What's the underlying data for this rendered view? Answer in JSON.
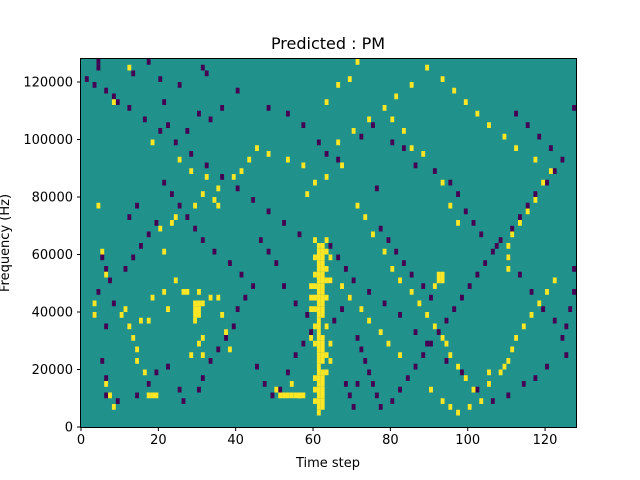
{
  "chart_data": {
    "type": "heatmap",
    "title": "Predicted : PM",
    "xlabel": "Time step",
    "ylabel": "Frequency (Hz)",
    "xlim": [
      0,
      128
    ],
    "ylim": [
      0,
      128000
    ],
    "xticks": [
      0,
      20,
      40,
      60,
      80,
      100,
      120
    ],
    "xtick_labels": [
      "0",
      "20",
      "40",
      "60",
      "80",
      "100",
      "120"
    ],
    "yticks": [
      0,
      20000,
      40000,
      60000,
      80000,
      100000,
      120000
    ],
    "ytick_labels": [
      "0",
      "20000",
      "40000",
      "60000",
      "80000",
      "100000",
      "120000"
    ],
    "colormap": "viridis",
    "colors": {
      "low": "#440154",
      "mid": "#21918c",
      "high": "#fde725"
    },
    "background_value": "mid",
    "bin_width_time": 1,
    "bin_height_hz": 2000,
    "low_cells": [
      [
        4,
        126000
      ],
      [
        4,
        124000
      ],
      [
        1,
        120000
      ],
      [
        3,
        118000
      ],
      [
        9,
        112000
      ],
      [
        13,
        122000
      ],
      [
        17,
        126000
      ],
      [
        20,
        120000
      ],
      [
        21,
        112000
      ],
      [
        25,
        118000
      ],
      [
        31,
        124000
      ],
      [
        32,
        122000
      ],
      [
        22,
        104000
      ],
      [
        27,
        102000
      ],
      [
        30,
        108000
      ],
      [
        33,
        106000
      ],
      [
        36,
        110000
      ],
      [
        40,
        116000
      ],
      [
        48,
        110000
      ],
      [
        53,
        108000
      ],
      [
        57,
        104000
      ],
      [
        61,
        98000
      ],
      [
        63,
        94000
      ],
      [
        66,
        92000
      ],
      [
        72,
        100000
      ],
      [
        75,
        104000
      ],
      [
        76,
        82000
      ],
      [
        80,
        98000
      ],
      [
        83,
        96000
      ],
      [
        86,
        90000
      ],
      [
        91,
        88000
      ],
      [
        95,
        84000
      ],
      [
        97,
        80000
      ],
      [
        99,
        74000
      ],
      [
        101,
        70000
      ],
      [
        103,
        66000
      ],
      [
        107,
        62000
      ],
      [
        110,
        58000
      ],
      [
        113,
        52000
      ],
      [
        116,
        46000
      ],
      [
        119,
        40000
      ],
      [
        122,
        36000
      ],
      [
        124,
        30000
      ],
      [
        125,
        24000
      ],
      [
        120,
        20000
      ],
      [
        117,
        16000
      ],
      [
        114,
        14000
      ],
      [
        110,
        10000
      ],
      [
        106,
        8000
      ],
      [
        102,
        12000
      ],
      [
        98,
        18000
      ],
      [
        94,
        22000
      ],
      [
        90,
        28000
      ],
      [
        86,
        32000
      ],
      [
        82,
        38000
      ],
      [
        78,
        42000
      ],
      [
        74,
        46000
      ],
      [
        70,
        50000
      ],
      [
        68,
        54000
      ],
      [
        66,
        58000
      ],
      [
        64,
        62000
      ],
      [
        56,
        66000
      ],
      [
        52,
        70000
      ],
      [
        48,
        74000
      ],
      [
        44,
        78000
      ],
      [
        40,
        82000
      ],
      [
        36,
        86000
      ],
      [
        32,
        90000
      ],
      [
        28,
        94000
      ],
      [
        24,
        98000
      ],
      [
        20,
        102000
      ],
      [
        16,
        106000
      ],
      [
        12,
        110000
      ],
      [
        8,
        114000
      ],
      [
        6,
        116000
      ],
      [
        5,
        58000
      ],
      [
        6,
        54000
      ],
      [
        7,
        50000
      ],
      [
        4,
        46000
      ],
      [
        8,
        42000
      ],
      [
        3,
        38000
      ],
      [
        6,
        34000
      ],
      [
        5,
        22000
      ],
      [
        6,
        16000
      ],
      [
        6,
        10000
      ],
      [
        9,
        8000
      ],
      [
        14,
        10000
      ],
      [
        17,
        14000
      ],
      [
        19,
        18000
      ],
      [
        22,
        20000
      ],
      [
        25,
        12000
      ],
      [
        26,
        8000
      ],
      [
        30,
        12000
      ],
      [
        31,
        16000
      ],
      [
        33,
        22000
      ],
      [
        35,
        26000
      ],
      [
        37,
        30000
      ],
      [
        39,
        34000
      ],
      [
        40,
        40000
      ],
      [
        42,
        44000
      ],
      [
        44,
        48000
      ],
      [
        41,
        52000
      ],
      [
        38,
        56000
      ],
      [
        34,
        60000
      ],
      [
        31,
        64000
      ],
      [
        29,
        68000
      ],
      [
        27,
        72000
      ],
      [
        25,
        76000
      ],
      [
        23,
        80000
      ],
      [
        21,
        84000
      ],
      [
        19,
        70000
      ],
      [
        17,
        66000
      ],
      [
        15,
        62000
      ],
      [
        13,
        58000
      ],
      [
        11,
        54000
      ],
      [
        12,
        72000
      ],
      [
        14,
        76000
      ],
      [
        45,
        20000
      ],
      [
        47,
        14000
      ],
      [
        49,
        10000
      ],
      [
        51,
        12000
      ],
      [
        53,
        18000
      ],
      [
        55,
        24000
      ],
      [
        57,
        28000
      ],
      [
        59,
        32000
      ],
      [
        65,
        36000
      ],
      [
        67,
        40000
      ],
      [
        69,
        44000
      ],
      [
        71,
        30000
      ],
      [
        72,
        26000
      ],
      [
        73,
        22000
      ],
      [
        74,
        18000
      ],
      [
        75,
        14000
      ],
      [
        76,
        10000
      ],
      [
        77,
        6000
      ],
      [
        80,
        8000
      ],
      [
        82,
        12000
      ],
      [
        84,
        16000
      ],
      [
        86,
        20000
      ],
      [
        88,
        24000
      ],
      [
        89,
        28000
      ],
      [
        92,
        32000
      ],
      [
        94,
        36000
      ],
      [
        96,
        40000
      ],
      [
        98,
        44000
      ],
      [
        100,
        48000
      ],
      [
        102,
        52000
      ],
      [
        104,
        56000
      ],
      [
        106,
        60000
      ],
      [
        108,
        64000
      ],
      [
        111,
        68000
      ],
      [
        113,
        72000
      ],
      [
        115,
        76000
      ],
      [
        117,
        80000
      ],
      [
        120,
        84000
      ],
      [
        122,
        88000
      ],
      [
        124,
        92000
      ],
      [
        121,
        96000
      ],
      [
        118,
        100000
      ],
      [
        115,
        104000
      ],
      [
        112,
        108000
      ],
      [
        127,
        110000
      ],
      [
        127,
        46000
      ],
      [
        127,
        54000
      ],
      [
        126,
        40000
      ],
      [
        125,
        34000
      ],
      [
        90,
        44000
      ],
      [
        88,
        48000
      ],
      [
        85,
        52000
      ],
      [
        83,
        56000
      ],
      [
        81,
        60000
      ],
      [
        79,
        64000
      ],
      [
        77,
        68000
      ],
      [
        61,
        40000
      ],
      [
        62,
        46000
      ],
      [
        64,
        50000
      ],
      [
        58,
        38000
      ],
      [
        55,
        42000
      ],
      [
        52,
        48000
      ],
      [
        50,
        56000
      ],
      [
        48,
        60000
      ],
      [
        46,
        64000
      ],
      [
        68,
        14000
      ],
      [
        69,
        10000
      ],
      [
        70,
        6000
      ],
      [
        71,
        14000
      ]
    ],
    "high_cells": [
      [
        61,
        62000
      ],
      [
        61,
        60000
      ],
      [
        61,
        58000
      ],
      [
        61,
        56000
      ],
      [
        61,
        54000
      ],
      [
        61,
        52000
      ],
      [
        61,
        50000
      ],
      [
        61,
        48000
      ],
      [
        61,
        46000
      ],
      [
        61,
        44000
      ],
      [
        61,
        42000
      ],
      [
        61,
        40000
      ],
      [
        61,
        38000
      ],
      [
        61,
        36000
      ],
      [
        61,
        34000
      ],
      [
        61,
        32000
      ],
      [
        61,
        30000
      ],
      [
        61,
        28000
      ],
      [
        61,
        26000
      ],
      [
        61,
        24000
      ],
      [
        61,
        22000
      ],
      [
        61,
        20000
      ],
      [
        61,
        18000
      ],
      [
        61,
        16000
      ],
      [
        61,
        14000
      ],
      [
        61,
        12000
      ],
      [
        61,
        10000
      ],
      [
        61,
        8000
      ],
      [
        61,
        6000
      ],
      [
        61,
        4000
      ],
      [
        62,
        62000
      ],
      [
        62,
        60000
      ],
      [
        62,
        58000
      ],
      [
        62,
        56000
      ],
      [
        62,
        54000
      ],
      [
        62,
        52000
      ],
      [
        62,
        50000
      ],
      [
        62,
        48000
      ],
      [
        62,
        46000
      ],
      [
        62,
        44000
      ],
      [
        62,
        42000
      ],
      [
        62,
        40000
      ],
      [
        62,
        38000
      ],
      [
        62,
        30000
      ],
      [
        62,
        28000
      ],
      [
        62,
        26000
      ],
      [
        62,
        24000
      ],
      [
        62,
        22000
      ],
      [
        62,
        18000
      ],
      [
        62,
        16000
      ],
      [
        62,
        14000
      ],
      [
        62,
        12000
      ],
      [
        62,
        10000
      ],
      [
        62,
        8000
      ],
      [
        62,
        6000
      ],
      [
        60,
        64000
      ],
      [
        60,
        58000
      ],
      [
        60,
        52000
      ],
      [
        60,
        48000
      ],
      [
        60,
        44000
      ],
      [
        60,
        40000
      ],
      [
        60,
        34000
      ],
      [
        60,
        28000
      ],
      [
        60,
        16000
      ],
      [
        60,
        12000
      ],
      [
        60,
        8000
      ],
      [
        63,
        64000
      ],
      [
        63,
        60000
      ],
      [
        63,
        54000
      ],
      [
        63,
        50000
      ],
      [
        63,
        44000
      ],
      [
        63,
        34000
      ],
      [
        63,
        24000
      ],
      [
        63,
        18000
      ],
      [
        59,
        48000
      ],
      [
        59,
        44000
      ],
      [
        59,
        40000
      ],
      [
        59,
        30000
      ],
      [
        64,
        58000
      ],
      [
        64,
        50000
      ],
      [
        64,
        28000
      ],
      [
        64,
        22000
      ],
      [
        51,
        10000
      ],
      [
        52,
        10000
      ],
      [
        53,
        10000
      ],
      [
        54,
        10000
      ],
      [
        55,
        10000
      ],
      [
        56,
        10000
      ],
      [
        57,
        10000
      ],
      [
        50,
        12000
      ],
      [
        54,
        14000
      ],
      [
        56,
        10000
      ],
      [
        29,
        38000
      ],
      [
        30,
        38000
      ],
      [
        29,
        40000
      ],
      [
        30,
        40000
      ],
      [
        29,
        42000
      ],
      [
        30,
        42000
      ],
      [
        31,
        42000
      ],
      [
        29,
        36000
      ],
      [
        31,
        30000
      ],
      [
        30,
        28000
      ],
      [
        31,
        24000
      ],
      [
        28,
        24000
      ],
      [
        27,
        46000
      ],
      [
        30,
        46000
      ],
      [
        33,
        44000
      ],
      [
        35,
        44000
      ],
      [
        36,
        38000
      ],
      [
        37,
        32000
      ],
      [
        38,
        26000
      ],
      [
        17,
        10000
      ],
      [
        18,
        10000
      ],
      [
        19,
        10000
      ],
      [
        16,
        18000
      ],
      [
        15,
        36000
      ],
      [
        17,
        36000
      ],
      [
        18,
        44000
      ],
      [
        22,
        40000
      ],
      [
        21,
        46000
      ],
      [
        24,
        50000
      ],
      [
        26,
        46000
      ],
      [
        21,
        60000
      ],
      [
        20,
        68000
      ],
      [
        23,
        70000
      ],
      [
        24,
        72000
      ],
      [
        29,
        76000
      ],
      [
        34,
        78000
      ],
      [
        35,
        82000
      ],
      [
        39,
        86000
      ],
      [
        41,
        88000
      ],
      [
        43,
        92000
      ],
      [
        45,
        96000
      ],
      [
        48,
        94000
      ],
      [
        53,
        92000
      ],
      [
        57,
        90000
      ],
      [
        58,
        80000
      ],
      [
        60,
        84000
      ],
      [
        63,
        86000
      ],
      [
        67,
        90000
      ],
      [
        71,
        76000
      ],
      [
        73,
        72000
      ],
      [
        75,
        66000
      ],
      [
        78,
        60000
      ],
      [
        80,
        54000
      ],
      [
        82,
        50000
      ],
      [
        85,
        46000
      ],
      [
        87,
        42000
      ],
      [
        89,
        38000
      ],
      [
        91,
        34000
      ],
      [
        93,
        30000
      ],
      [
        92,
        52000
      ],
      [
        93,
        52000
      ],
      [
        92,
        50000
      ],
      [
        93,
        50000
      ],
      [
        91,
        48000
      ],
      [
        94,
        28000
      ],
      [
        95,
        24000
      ],
      [
        97,
        20000
      ],
      [
        99,
        16000
      ],
      [
        101,
        12000
      ],
      [
        103,
        8000
      ],
      [
        105,
        14000
      ],
      [
        108,
        18000
      ],
      [
        110,
        22000
      ],
      [
        111,
        26000
      ],
      [
        112,
        30000
      ],
      [
        114,
        34000
      ],
      [
        116,
        38000
      ],
      [
        118,
        42000
      ],
      [
        120,
        46000
      ],
      [
        122,
        50000
      ],
      [
        110,
        54000
      ],
      [
        110,
        58000
      ],
      [
        110,
        62000
      ],
      [
        111,
        66000
      ],
      [
        113,
        70000
      ],
      [
        115,
        74000
      ],
      [
        117,
        78000
      ],
      [
        119,
        84000
      ],
      [
        121,
        88000
      ],
      [
        117,
        92000
      ],
      [
        112,
        96000
      ],
      [
        109,
        100000
      ],
      [
        105,
        104000
      ],
      [
        102,
        108000
      ],
      [
        99,
        112000
      ],
      [
        96,
        116000
      ],
      [
        93,
        120000
      ],
      [
        89,
        124000
      ],
      [
        85,
        118000
      ],
      [
        81,
        114000
      ],
      [
        78,
        110000
      ],
      [
        74,
        106000
      ],
      [
        70,
        102000
      ],
      [
        66,
        98000
      ],
      [
        63,
        112000
      ],
      [
        66,
        118000
      ],
      [
        69,
        120000
      ],
      [
        71,
        126000
      ],
      [
        80,
        106000
      ],
      [
        85,
        96000
      ],
      [
        83,
        102000
      ],
      [
        88,
        94000
      ],
      [
        93,
        84000
      ],
      [
        95,
        76000
      ],
      [
        97,
        70000
      ],
      [
        82,
        24000
      ],
      [
        79,
        28000
      ],
      [
        77,
        32000
      ],
      [
        74,
        36000
      ],
      [
        72,
        40000
      ],
      [
        69,
        44000
      ],
      [
        67,
        48000
      ],
      [
        90,
        12000
      ],
      [
        93,
        8000
      ],
      [
        95,
        6000
      ],
      [
        97,
        4000
      ],
      [
        100,
        6000
      ],
      [
        105,
        18000
      ],
      [
        109,
        20000
      ],
      [
        3,
        42000
      ],
      [
        4,
        76000
      ],
      [
        5,
        60000
      ],
      [
        3,
        38000
      ],
      [
        6,
        52000
      ],
      [
        10,
        38000
      ],
      [
        11,
        40000
      ],
      [
        12,
        34000
      ],
      [
        13,
        30000
      ],
      [
        14,
        26000
      ],
      [
        14,
        22000
      ],
      [
        6,
        14000
      ],
      [
        7,
        10000
      ],
      [
        8,
        6000
      ],
      [
        8,
        112000
      ],
      [
        12,
        124000
      ],
      [
        18,
        98000
      ],
      [
        25,
        92000
      ],
      [
        28,
        88000
      ],
      [
        32,
        86000
      ],
      [
        31,
        80000
      ],
      [
        35,
        76000
      ]
    ]
  }
}
